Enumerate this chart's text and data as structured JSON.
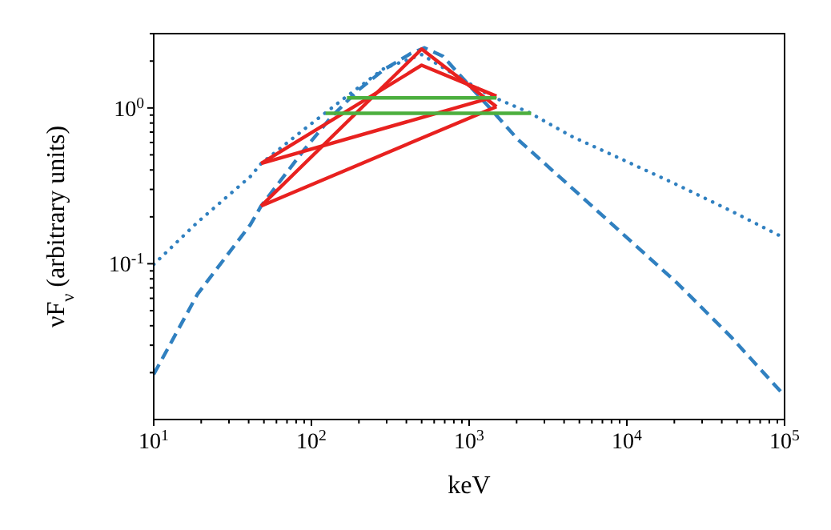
{
  "chart_data": {
    "type": "line",
    "xlabel": "keV",
    "ylabel": "νF$_{ν}$ (arbitrary units)",
    "log": "xy",
    "grid": false,
    "xlim": [
      10,
      100000
    ],
    "ylim": [
      0.01,
      3
    ],
    "xticks": [
      {
        "value": 10,
        "label": "10$^{1}$"
      },
      {
        "value": 20,
        "label": null
      },
      {
        "value": 30,
        "label": null
      },
      {
        "value": 40,
        "label": null
      },
      {
        "value": 50,
        "label": null
      },
      {
        "value": 60,
        "label": null
      },
      {
        "value": 70,
        "label": null
      },
      {
        "value": 80,
        "label": null
      },
      {
        "value": 90,
        "label": null
      },
      {
        "value": 100,
        "label": "10$^{2}$"
      },
      {
        "value": 200,
        "label": null
      },
      {
        "value": 300,
        "label": null
      },
      {
        "value": 400,
        "label": null
      },
      {
        "value": 500,
        "label": null
      },
      {
        "value": 600,
        "label": null
      },
      {
        "value": 700,
        "label": null
      },
      {
        "value": 800,
        "label": null
      },
      {
        "value": 900,
        "label": null
      },
      {
        "value": 1000,
        "label": "10$^{3}$"
      },
      {
        "value": 2000,
        "label": null
      },
      {
        "value": 3000,
        "label": null
      },
      {
        "value": 4000,
        "label": null
      },
      {
        "value": 5000,
        "label": null
      },
      {
        "value": 6000,
        "label": null
      },
      {
        "value": 7000,
        "label": null
      },
      {
        "value": 8000,
        "label": null
      },
      {
        "value": 9000,
        "label": null
      },
      {
        "value": 10000,
        "label": "10$^{4}$"
      },
      {
        "value": 20000,
        "label": null
      },
      {
        "value": 30000,
        "label": null
      },
      {
        "value": 40000,
        "label": null
      },
      {
        "value": 50000,
        "label": null
      },
      {
        "value": 60000,
        "label": null
      },
      {
        "value": 70000,
        "label": null
      },
      {
        "value": 80000,
        "label": null
      },
      {
        "value": 90000,
        "label": null
      },
      {
        "value": 100000,
        "label": "10$^{5}$"
      }
    ],
    "yticks": [
      {
        "value": 0.02,
        "label": null
      },
      {
        "value": 0.03,
        "label": null
      },
      {
        "value": 0.04,
        "label": null
      },
      {
        "value": 0.05,
        "label": null
      },
      {
        "value": 0.06,
        "label": null
      },
      {
        "value": 0.07,
        "label": null
      },
      {
        "value": 0.08,
        "label": null
      },
      {
        "value": 0.09,
        "label": null
      },
      {
        "value": 0.1,
        "label": "10$^{-1}$"
      },
      {
        "value": 0.2,
        "label": null
      },
      {
        "value": 0.3,
        "label": null
      },
      {
        "value": 0.4,
        "label": null
      },
      {
        "value": 0.5,
        "label": null
      },
      {
        "value": 0.6,
        "label": null
      },
      {
        "value": 0.7,
        "label": null
      },
      {
        "value": 0.8,
        "label": null
      },
      {
        "value": 0.9,
        "label": null
      },
      {
        "value": 1,
        "label": "10$^{0}$"
      },
      {
        "value": 2,
        "label": null
      },
      {
        "value": 3,
        "label": null
      }
    ],
    "series": [
      {
        "color": "#3080c0",
        "line_style": "dashed",
        "x": [
          10,
          19,
          41,
          48,
          90,
          133,
          196,
          290,
          428,
          520,
          682,
          933,
          1377,
          2030,
          4430,
          9660,
          21000,
          45900,
          100000
        ],
        "values": [
          0.0195,
          0.064,
          0.178,
          0.235,
          0.54,
          0.87,
          1.29,
          1.77,
          2.24,
          2.43,
          2.15,
          1.51,
          0.98,
          0.63,
          0.31,
          0.152,
          0.0746,
          0.0338,
          0.0142
        ]
      },
      {
        "color": "#3080c0",
        "line_style": "dotted",
        "x": [
          10,
          19,
          41,
          48,
          90,
          168,
          290,
          500,
          933,
          1377,
          2380,
          4430,
          9660,
          21000,
          45900,
          100000
        ],
        "values": [
          0.099,
          0.185,
          0.363,
          0.44,
          0.73,
          1.19,
          1.8,
          2.2,
          1.5,
          1.19,
          0.94,
          0.66,
          0.46,
          0.32,
          0.218,
          0.146
        ]
      },
      {
        "color": "#e8211f",
        "line_style": "solid",
        "x": [
          48,
          500,
          1490
        ],
        "values": [
          0.44,
          1.88,
          1.19
        ]
      },
      {
        "color": "#e8211f",
        "line_style": "solid",
        "x": [
          48,
          1490
        ],
        "values": [
          0.44,
          1.19
        ]
      },
      {
        "color": "#e8211f",
        "line_style": "solid",
        "x": [
          48,
          500,
          1490
        ],
        "values": [
          0.235,
          2.39,
          1.02
        ]
      },
      {
        "color": "#e8211f",
        "line_style": "solid",
        "x": [
          48,
          1490
        ],
        "values": [
          0.235,
          1.02
        ]
      },
      {
        "color": "#4caf3e",
        "line_style": "solid",
        "x": [
          168,
          1490
        ],
        "values": [
          1.16,
          1.16
        ]
      },
      {
        "color": "#4caf3e",
        "line_style": "solid",
        "x": [
          123,
          2470
        ],
        "values": [
          0.925,
          0.925
        ]
      }
    ]
  }
}
